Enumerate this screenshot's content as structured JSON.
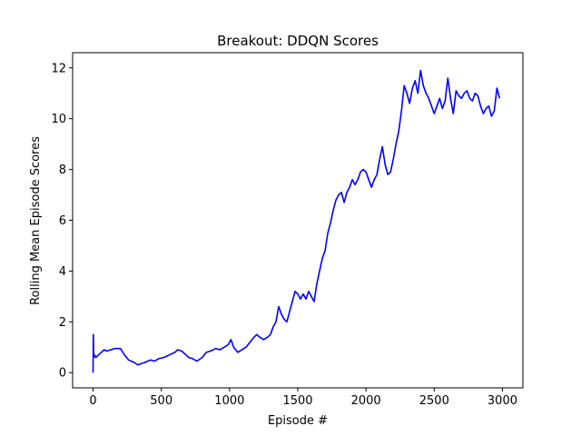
{
  "chart_data": {
    "type": "line",
    "title": "Breakout: DDQN Scores",
    "xlabel": "Episode #",
    "ylabel": "Rolling Mean Episode Scores",
    "xlim": [
      -150,
      3150
    ],
    "ylim": [
      -0.6,
      12.6
    ],
    "xticks": [
      0,
      500,
      1000,
      1500,
      2000,
      2500,
      3000
    ],
    "yticks": [
      0,
      2,
      4,
      6,
      8,
      10,
      12
    ],
    "grid": false,
    "legend": "none",
    "series": [
      {
        "color": "#0000ff",
        "x": [
          0,
          2,
          5,
          10,
          20,
          40,
          60,
          80,
          100,
          130,
          160,
          200,
          230,
          260,
          300,
          330,
          350,
          380,
          420,
          450,
          480,
          520,
          560,
          600,
          620,
          650,
          680,
          700,
          730,
          760,
          800,
          830,
          860,
          900,
          930,
          960,
          990,
          1010,
          1030,
          1060,
          1090,
          1120,
          1150,
          1180,
          1200,
          1220,
          1250,
          1280,
          1300,
          1320,
          1340,
          1360,
          1380,
          1400,
          1420,
          1440,
          1460,
          1480,
          1500,
          1520,
          1540,
          1560,
          1580,
          1600,
          1620,
          1640,
          1660,
          1680,
          1700,
          1720,
          1740,
          1760,
          1780,
          1800,
          1820,
          1840,
          1860,
          1880,
          1900,
          1920,
          1940,
          1960,
          1980,
          2000,
          2020,
          2040,
          2060,
          2080,
          2100,
          2120,
          2140,
          2160,
          2180,
          2200,
          2220,
          2240,
          2260,
          2280,
          2300,
          2320,
          2340,
          2360,
          2380,
          2400,
          2420,
          2440,
          2460,
          2480,
          2500,
          2520,
          2540,
          2560,
          2580,
          2600,
          2620,
          2640,
          2660,
          2680,
          2700,
          2720,
          2740,
          2760,
          2780,
          2800,
          2820,
          2840,
          2860,
          2880,
          2900,
          2920,
          2940,
          2960,
          2980
        ],
        "y": [
          0.0,
          1.5,
          0.6,
          0.7,
          0.6,
          0.7,
          0.8,
          0.9,
          0.85,
          0.9,
          0.95,
          0.95,
          0.7,
          0.5,
          0.4,
          0.3,
          0.35,
          0.4,
          0.5,
          0.45,
          0.55,
          0.6,
          0.7,
          0.8,
          0.9,
          0.85,
          0.7,
          0.6,
          0.55,
          0.45,
          0.6,
          0.8,
          0.85,
          0.95,
          0.9,
          1.0,
          1.1,
          1.3,
          1.0,
          0.8,
          0.9,
          1.0,
          1.2,
          1.4,
          1.5,
          1.4,
          1.3,
          1.4,
          1.5,
          1.8,
          2.0,
          2.6,
          2.3,
          2.1,
          2.0,
          2.4,
          2.8,
          3.2,
          3.1,
          2.9,
          3.1,
          2.9,
          3.2,
          3.0,
          2.8,
          3.5,
          4.0,
          4.5,
          4.8,
          5.5,
          5.9,
          6.4,
          6.8,
          7.0,
          7.1,
          6.7,
          7.1,
          7.3,
          7.6,
          7.4,
          7.6,
          7.9,
          8.0,
          7.9,
          7.6,
          7.3,
          7.6,
          7.8,
          8.4,
          8.9,
          8.2,
          7.8,
          7.9,
          8.4,
          9.0,
          9.5,
          10.3,
          11.3,
          11.0,
          10.6,
          11.2,
          11.5,
          11.0,
          11.9,
          11.3,
          11.0,
          10.8,
          10.5,
          10.2,
          10.5,
          10.8,
          10.4,
          10.7,
          11.6,
          10.8,
          10.2,
          11.1,
          10.9,
          10.8,
          11.0,
          11.1,
          10.8,
          10.7,
          11.0,
          10.9,
          10.5,
          10.2,
          10.4,
          10.5,
          10.1,
          10.3,
          11.2,
          10.8
        ]
      }
    ]
  }
}
